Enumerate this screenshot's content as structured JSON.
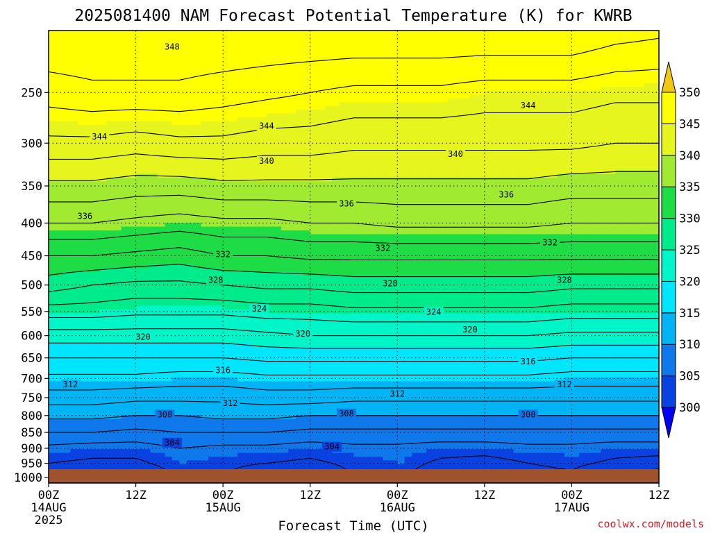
{
  "chart_data": {
    "type": "heatmap",
    "title": "2025081400 NAM Forecast Potential Temperature (K) for KWRB",
    "xlabel": "Forecast Time (UTC)",
    "ylabel": "",
    "y_scale": "log-pressure",
    "y_unit": "hPa",
    "ylim": [
      1020,
      200
    ],
    "x_ticks": [
      {
        "label": "00Z",
        "sub": "14AUG",
        "sub2": "2025",
        "hour": 0
      },
      {
        "label": "12Z",
        "sub": "",
        "sub2": "",
        "hour": 12
      },
      {
        "label": "00Z",
        "sub": "15AUG",
        "sub2": "",
        "hour": 24
      },
      {
        "label": "12Z",
        "sub": "",
        "sub2": "",
        "hour": 36
      },
      {
        "label": "00Z",
        "sub": "16AUG",
        "sub2": "",
        "hour": 48
      },
      {
        "label": "12Z",
        "sub": "",
        "sub2": "",
        "hour": 60
      },
      {
        "label": "00Z",
        "sub": "17AUG",
        "sub2": "",
        "hour": 72
      },
      {
        "label": "12Z",
        "sub": "",
        "sub2": "",
        "hour": 84
      }
    ],
    "xlim": [
      0,
      84
    ],
    "y_ticks": [
      250,
      300,
      350,
      400,
      450,
      500,
      550,
      600,
      650,
      700,
      750,
      800,
      850,
      900,
      950,
      1000
    ],
    "grid": true,
    "colorbar": {
      "levels": [
        300,
        305,
        310,
        315,
        320,
        325,
        330,
        335,
        340,
        345,
        350
      ],
      "labels": [
        "300",
        "305",
        "310",
        "315",
        "320",
        "325",
        "330",
        "335",
        "340",
        "345",
        "350"
      ],
      "colors": [
        "#0000f5",
        "#0a41e1",
        "#0f78eb",
        "#00b4f5",
        "#00e6ff",
        "#00f5c8",
        "#00eb8c",
        "#1edc46",
        "#a0eb32",
        "#e6f51e",
        "#ffff00",
        "#f0c814"
      ],
      "extend": "both"
    },
    "ground_color": "#a0522d",
    "profile_pressures": [
      1000,
      950,
      900,
      850,
      800,
      750,
      700,
      650,
      600,
      550,
      500,
      450,
      400,
      350,
      300,
      250,
      200
    ],
    "series": [
      {
        "hour": 0,
        "theta": [
          303.5,
          304.0,
          305.5,
          308.0,
          310.5,
          313.0,
          315.5,
          318.0,
          321.0,
          325.0,
          329.0,
          332.0,
          336.0,
          339.5,
          343.5,
          347.0,
          350.0
        ]
      },
      {
        "hour": 6,
        "theta": [
          301.5,
          303.5,
          305.0,
          308.0,
          310.5,
          313.0,
          315.5,
          318.0,
          321.0,
          325.0,
          328.0,
          332.0,
          336.0,
          339.5,
          343.5,
          347.5,
          350.0
        ]
      },
      {
        "hour": 12,
        "theta": [
          301.0,
          303.5,
          305.0,
          307.5,
          310.0,
          312.5,
          315.5,
          318.0,
          321.0,
          324.5,
          327.5,
          331.5,
          335.5,
          339.0,
          343.0,
          347.5,
          350.0
        ]
      },
      {
        "hour": 18,
        "theta": [
          304.5,
          305.0,
          306.0,
          308.0,
          310.0,
          312.5,
          315.0,
          318.0,
          321.0,
          324.5,
          327.5,
          331.0,
          335.0,
          339.0,
          343.5,
          347.5,
          350.0
        ]
      },
      {
        "hour": 24,
        "theta": [
          304.0,
          304.5,
          305.5,
          308.0,
          310.5,
          312.5,
          315.0,
          318.0,
          321.0,
          324.5,
          328.0,
          332.0,
          335.5,
          339.5,
          343.5,
          347.0,
          350.0
        ]
      },
      {
        "hour": 30,
        "theta": [
          302.0,
          304.0,
          305.5,
          308.0,
          310.5,
          313.0,
          315.5,
          318.5,
          321.5,
          325.0,
          328.5,
          332.0,
          335.5,
          339.5,
          343.0,
          346.5,
          350.0
        ]
      },
      {
        "hour": 36,
        "theta": [
          301.5,
          303.5,
          305.0,
          307.5,
          310.0,
          313.0,
          315.5,
          318.5,
          322.0,
          325.0,
          328.5,
          332.5,
          336.0,
          339.5,
          343.0,
          346.0,
          350.0
        ]
      },
      {
        "hour": 42,
        "theta": [
          304.0,
          304.5,
          305.5,
          307.5,
          310.0,
          312.5,
          315.5,
          318.5,
          322.0,
          325.5,
          329.0,
          332.5,
          336.0,
          339.5,
          342.5,
          345.5,
          350.0
        ]
      },
      {
        "hour": 48,
        "theta": [
          304.5,
          305.0,
          305.5,
          307.5,
          310.0,
          312.5,
          315.5,
          318.5,
          322.0,
          325.5,
          329.0,
          332.5,
          336.5,
          339.5,
          342.5,
          345.5,
          350.0
        ]
      },
      {
        "hour": 54,
        "theta": [
          302.0,
          303.5,
          305.0,
          307.5,
          310.0,
          312.5,
          315.5,
          318.5,
          322.0,
          325.5,
          329.0,
          332.5,
          336.5,
          339.5,
          342.5,
          345.5,
          350.0
        ]
      },
      {
        "hour": 60,
        "theta": [
          301.0,
          303.0,
          305.0,
          307.5,
          310.0,
          312.5,
          315.5,
          318.5,
          322.0,
          325.5,
          329.0,
          332.5,
          336.5,
          339.5,
          342.5,
          345.0,
          350.0
        ]
      },
      {
        "hour": 66,
        "theta": [
          303.0,
          304.0,
          305.5,
          307.5,
          310.0,
          312.5,
          315.5,
          318.5,
          322.0,
          325.5,
          329.0,
          332.5,
          336.5,
          339.5,
          342.5,
          345.0,
          350.0
        ]
      },
      {
        "hour": 72,
        "theta": [
          303.5,
          304.5,
          305.5,
          307.5,
          310.0,
          312.5,
          315.0,
          318.0,
          321.5,
          325.0,
          328.5,
          332.5,
          336.0,
          339.0,
          342.5,
          345.0,
          350.0
        ]
      },
      {
        "hour": 78,
        "theta": [
          301.0,
          303.5,
          305.0,
          307.5,
          310.0,
          312.5,
          315.0,
          318.0,
          321.5,
          325.0,
          328.5,
          332.5,
          336.0,
          339.0,
          342.0,
          344.5,
          349.0
        ]
      },
      {
        "hour": 84,
        "theta": [
          300.5,
          303.0,
          305.0,
          307.5,
          310.0,
          312.5,
          315.0,
          318.0,
          321.5,
          325.0,
          328.5,
          332.5,
          336.0,
          339.0,
          342.0,
          344.5,
          348.5
        ]
      }
    ],
    "contour_interval": 2,
    "contour_labels": [
      {
        "text": "348",
        "hour": 17,
        "p": 212
      },
      {
        "text": "344",
        "hour": 66,
        "p": 262
      },
      {
        "text": "344",
        "hour": 7,
        "p": 293
      },
      {
        "text": "344",
        "hour": 30,
        "p": 282
      },
      {
        "text": "340",
        "hour": 30,
        "p": 320
      },
      {
        "text": "340",
        "hour": 56,
        "p": 312
      },
      {
        "text": "336",
        "hour": 5,
        "p": 390
      },
      {
        "text": "336",
        "hour": 41,
        "p": 373
      },
      {
        "text": "336",
        "hour": 63,
        "p": 361
      },
      {
        "text": "332",
        "hour": 24,
        "p": 448
      },
      {
        "text": "332",
        "hour": 46,
        "p": 438
      },
      {
        "text": "332",
        "hour": 69,
        "p": 429
      },
      {
        "text": "328",
        "hour": 23,
        "p": 491
      },
      {
        "text": "328",
        "hour": 47,
        "p": 497
      },
      {
        "text": "328",
        "hour": 71,
        "p": 491
      },
      {
        "text": "324",
        "hour": 29,
        "p": 545
      },
      {
        "text": "324",
        "hour": 53,
        "p": 551
      },
      {
        "text": "320",
        "hour": 13,
        "p": 603
      },
      {
        "text": "320",
        "hour": 35,
        "p": 596
      },
      {
        "text": "320",
        "hour": 58,
        "p": 587
      },
      {
        "text": "316",
        "hour": 24,
        "p": 680
      },
      {
        "text": "316",
        "hour": 66,
        "p": 659
      },
      {
        "text": "312",
        "hour": 3,
        "p": 715
      },
      {
        "text": "312",
        "hour": 25,
        "p": 765
      },
      {
        "text": "312",
        "hour": 48,
        "p": 740
      },
      {
        "text": "312",
        "hour": 71,
        "p": 715
      },
      {
        "text": "308",
        "hour": 16,
        "p": 797
      },
      {
        "text": "308",
        "hour": 41,
        "p": 794
      },
      {
        "text": "308",
        "hour": 66,
        "p": 797
      },
      {
        "text": "304",
        "hour": 17,
        "p": 882
      },
      {
        "text": "304",
        "hour": 39,
        "p": 895
      }
    ]
  },
  "credit": "coolwx.com/models"
}
